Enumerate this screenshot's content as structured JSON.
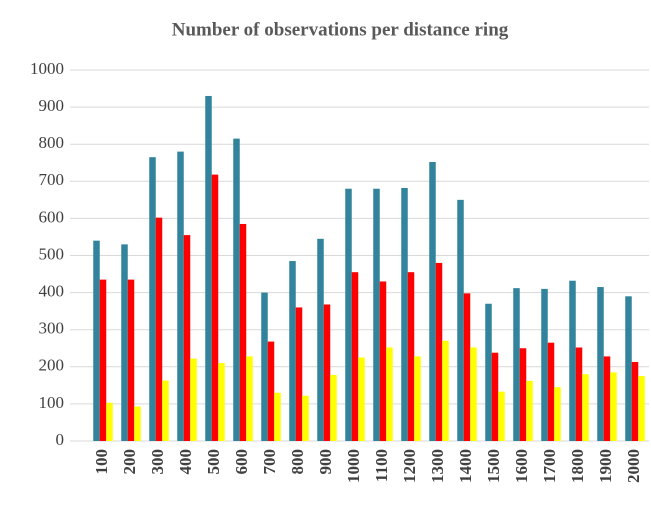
{
  "chart_data": {
    "type": "bar",
    "title": "Number of observations per distance ring",
    "categories": [
      "100",
      "200",
      "300",
      "400",
      "500",
      "600",
      "700",
      "800",
      "900",
      "1000",
      "1100",
      "1200",
      "1300",
      "1400",
      "1500",
      "1600",
      "1700",
      "1800",
      "1900",
      "2000"
    ],
    "series": [
      {
        "color": "#31849b",
        "values": [
          540,
          530,
          765,
          780,
          930,
          815,
          400,
          485,
          545,
          680,
          680,
          682,
          752,
          650,
          370,
          412,
          410,
          432,
          415,
          390
        ]
      },
      {
        "color": "#ff0000",
        "values": [
          435,
          435,
          602,
          555,
          718,
          585,
          268,
          360,
          368,
          455,
          430,
          455,
          480,
          398,
          238,
          250,
          265,
          252,
          228,
          213
        ]
      },
      {
        "color": "#ffff00",
        "values": [
          103,
          93,
          163,
          222,
          210,
          228,
          130,
          122,
          178,
          225,
          252,
          228,
          270,
          252,
          133,
          162,
          145,
          180,
          185,
          175
        ]
      }
    ],
    "ylim": [
      0,
      1000
    ],
    "yticks": [
      0,
      100,
      200,
      300,
      400,
      500,
      600,
      700,
      800,
      900,
      1000
    ],
    "grid": true
  }
}
